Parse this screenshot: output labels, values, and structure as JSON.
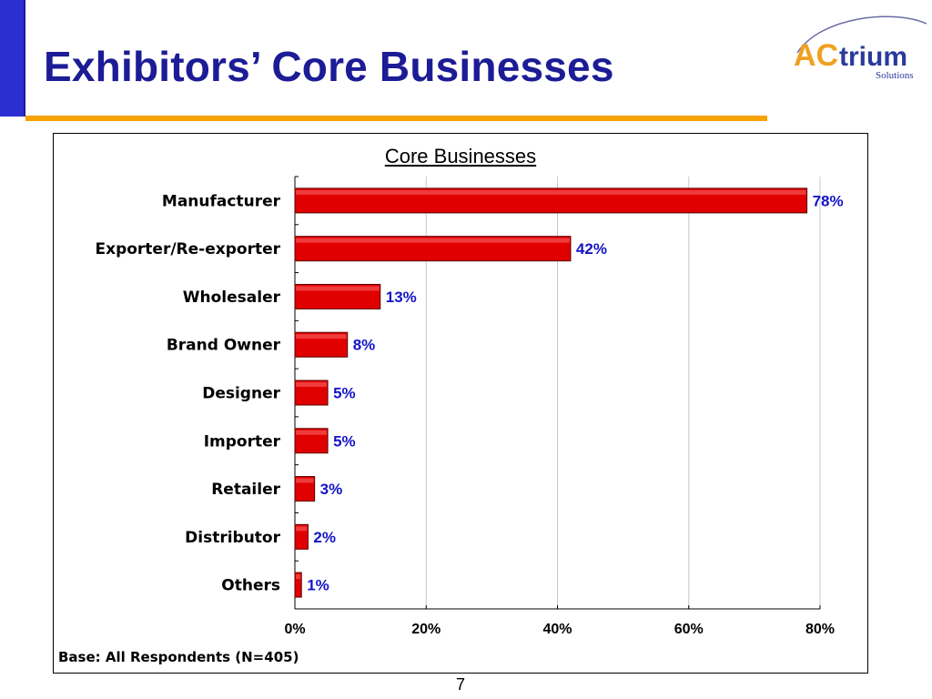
{
  "slide": {
    "title": "Exhibitors’ Core Businesses",
    "page_number": "7",
    "base_note": "Base: All Respondents (N=405)",
    "colors": {
      "title": "#1c1c96",
      "accent_rule": "#f5a300",
      "stripe": "#2b2fd1"
    }
  },
  "logo": {
    "brand": "AC",
    "brand_suffix": "trium",
    "tagline": "Solutions"
  },
  "chart_data": {
    "type": "bar",
    "orientation": "horizontal",
    "title": "Core Businesses",
    "categories": [
      "Manufacturer",
      "Exporter/Re-exporter",
      "Wholesaler",
      "Brand Owner",
      "Designer",
      "Importer",
      "Retailer",
      "Distributor",
      "Others"
    ],
    "values": [
      78,
      42,
      13,
      8,
      5,
      5,
      3,
      2,
      1
    ],
    "value_labels": [
      "78%",
      "42%",
      "13%",
      "8%",
      "5%",
      "5%",
      "3%",
      "2%",
      "1%"
    ],
    "xlim": [
      0,
      80
    ],
    "ticks": [
      0,
      20,
      40,
      60,
      80
    ],
    "tick_labels": [
      "0%",
      "20%",
      "40%",
      "60%",
      "80%"
    ],
    "grid": true,
    "bar_color": "#e00000",
    "label_color": "#1414c8"
  }
}
